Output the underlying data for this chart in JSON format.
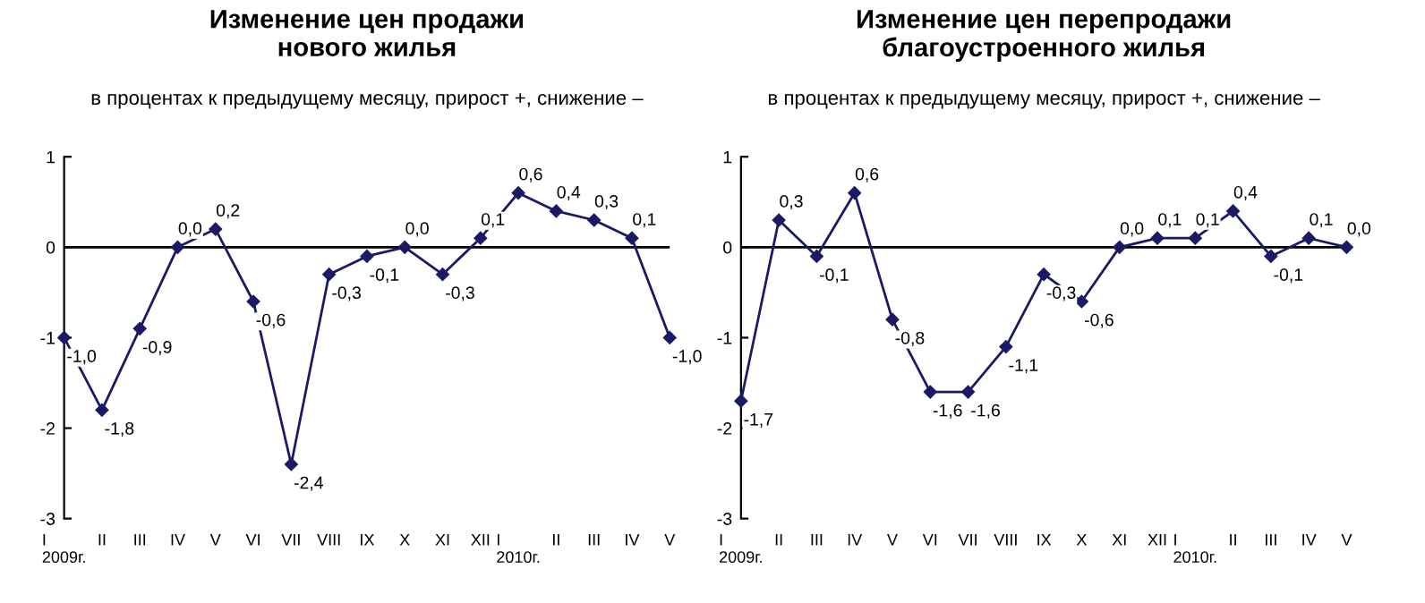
{
  "chart_data": [
    {
      "type": "line",
      "title": "Изменение цен продажи\nнового жилья",
      "subtitle": "в процентах к предыдущему месяцу, прирост +, снижение –",
      "categories": [
        "I\n2009г.",
        "II",
        "III",
        "IV",
        "V",
        "VI",
        "VII",
        "VIII",
        "IX",
        "X",
        "XI",
        "XII",
        "I\n2010г.",
        "II",
        "III",
        "IV",
        "V"
      ],
      "series": [
        {
          "color": "#1a1a66",
          "values": [
            -1.0,
            -1.8,
            -0.9,
            0.0,
            0.2,
            -0.6,
            -2.4,
            -0.3,
            -0.1,
            0.0,
            -0.3,
            0.1,
            0.6,
            0.4,
            0.3,
            0.1,
            -1.0
          ],
          "value_labels": [
            "-1,0",
            "-1,8",
            "-0,9",
            "0,0",
            "0,2",
            "-0,6",
            "-2,4",
            "-0,3",
            "-0,1",
            "0,0",
            "-0,3",
            "0,1",
            "0,6",
            "0,4",
            "0,3",
            "0,1",
            "-1,0"
          ]
        }
      ],
      "ylim": [
        -3,
        1
      ],
      "yticks": [
        -3,
        -2,
        -1,
        0,
        1
      ],
      "marker": "diamond",
      "grid": false,
      "legend": false,
      "ref_lines": [
        {
          "axis": "y",
          "value": 0,
          "color": "#000000"
        }
      ]
    },
    {
      "type": "line",
      "title": "Изменение цен перепродажи\nблагоустроенного жилья",
      "subtitle": "в процентах к предыдущему месяцу, прирост +, снижение –",
      "categories": [
        "I\n2009г.",
        "II",
        "III",
        "IV",
        "V",
        "VI",
        "VII",
        "VIII",
        "IX",
        "X",
        "XI",
        "XII",
        "I\n2010г.",
        "II",
        "III",
        "IV",
        "V"
      ],
      "series": [
        {
          "color": "#1a1a66",
          "values": [
            -1.7,
            0.3,
            -0.1,
            0.6,
            -0.8,
            -1.6,
            -1.6,
            -1.1,
            -0.3,
            -0.6,
            0.0,
            0.1,
            0.1,
            0.4,
            -0.1,
            0.1,
            0.0
          ],
          "value_labels": [
            "-1,7",
            "0,3",
            "-0,1",
            "0,6",
            "-0,8",
            "-1,6",
            "-1,6",
            "-1,1",
            "-0,3",
            "-0,6",
            "0,0",
            "0,1",
            "0,1",
            "0,4",
            "-0,1",
            "0,1",
            "0,0"
          ]
        }
      ],
      "ylim": [
        -3,
        1
      ],
      "yticks": [
        -3,
        -2,
        -1,
        0,
        1
      ],
      "marker": "diamond",
      "grid": false,
      "legend": false,
      "ref_lines": [
        {
          "axis": "y",
          "value": 0,
          "color": "#000000"
        }
      ]
    }
  ]
}
